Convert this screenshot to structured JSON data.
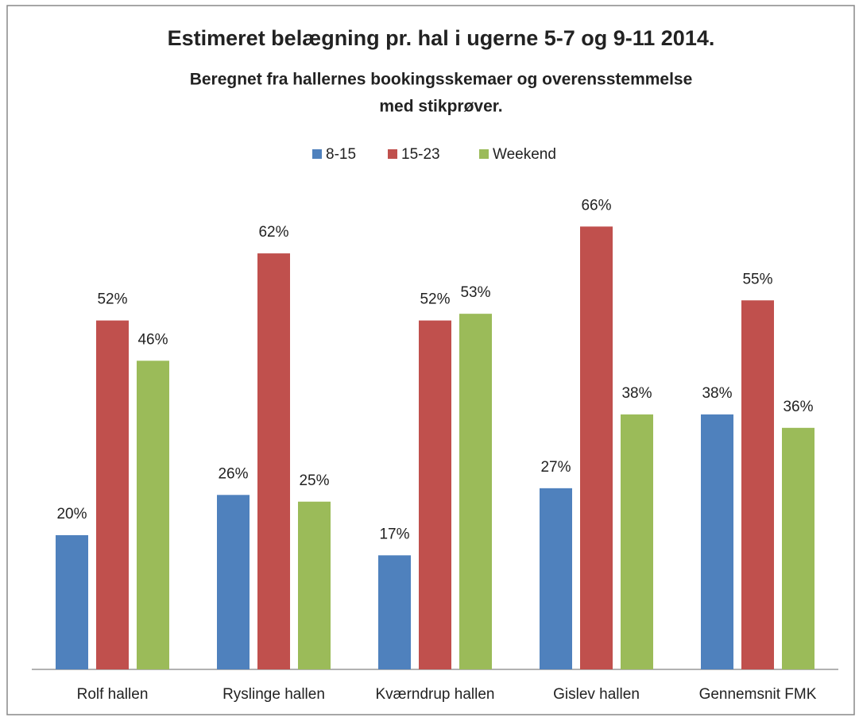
{
  "chart_data": {
    "type": "bar",
    "title": "Estimeret belægning pr. hal i ugerne 5-7 og 9-11 2014.",
    "subtitle": [
      "Beregnet fra hallernes bookingsskemaer og overensstemmelse",
      "med stikprøver."
    ],
    "categories": [
      "Rolf hallen",
      "Ryslinge hallen",
      "Kværndrup hallen",
      "Gislev hallen",
      "Gennemsnit FMK"
    ],
    "series": [
      {
        "name": "8-15",
        "color": "#4f81bd",
        "values": [
          20,
          26,
          17,
          27,
          38
        ],
        "value_labels": [
          "20%",
          "26%",
          "17%",
          "27%",
          "38%"
        ]
      },
      {
        "name": "15-23",
        "color": "#c0504d",
        "values": [
          52,
          62,
          52,
          66,
          55
        ],
        "value_labels": [
          "52%",
          "62%",
          "52%",
          "66%",
          "55%"
        ]
      },
      {
        "name": "Weekend",
        "color": "#9bbb59",
        "values": [
          46,
          25,
          53,
          38,
          36
        ],
        "value_labels": [
          "46%",
          "25%",
          "53%",
          "38%",
          "36%"
        ]
      }
    ],
    "legend": "top"
  }
}
